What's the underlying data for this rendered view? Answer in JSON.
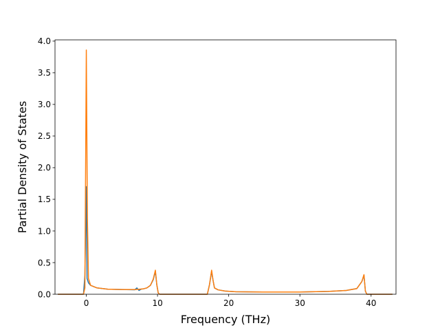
{
  "chart_data": {
    "type": "line",
    "title": "",
    "xlabel": "Frequency (THz)",
    "ylabel": "Partial Density of States",
    "xlim": [
      -4.4,
      43.5
    ],
    "ylim": [
      0.0,
      4.02
    ],
    "xticks": [
      0,
      10,
      20,
      30,
      40
    ],
    "xtick_labels": [
      "0",
      "10",
      "20",
      "30",
      "40"
    ],
    "yticks": [
      0.0,
      0.5,
      1.0,
      1.5,
      2.0,
      2.5,
      3.0,
      3.5,
      4.0
    ],
    "ytick_labels": [
      "0.0",
      "0.5",
      "1.0",
      "1.5",
      "2.0",
      "2.5",
      "3.0",
      "3.5",
      "4.0"
    ],
    "grid": false,
    "legend": "none",
    "series": [
      {
        "color": "#1f77b4",
        "x": [
          -4.0,
          -0.4,
          -0.2,
          0.0,
          0.1,
          0.3,
          0.6,
          1.5,
          3.0,
          5.0,
          6.8,
          7.1,
          7.4,
          7.7,
          8.0,
          8.5,
          9.0,
          9.4,
          9.7,
          9.9,
          10.1,
          10.3,
          11.0,
          14.0,
          17.0,
          17.3,
          17.6,
          17.8,
          18.0,
          18.5,
          19.5,
          21.0,
          25.0,
          30.0,
          34.0,
          36.5,
          38.0,
          38.7,
          39.0,
          39.2,
          39.4,
          39.8,
          43.0
        ],
        "y": [
          0.0,
          0.0,
          0.3,
          1.7,
          0.25,
          0.18,
          0.14,
          0.1,
          0.08,
          0.075,
          0.07,
          0.1,
          0.06,
          0.08,
          0.085,
          0.1,
          0.14,
          0.23,
          0.36,
          0.15,
          0.02,
          0.0,
          0.0,
          0.0,
          0.0,
          0.15,
          0.36,
          0.22,
          0.1,
          0.07,
          0.05,
          0.04,
          0.035,
          0.035,
          0.045,
          0.06,
          0.09,
          0.2,
          0.3,
          0.05,
          0.0,
          0.0,
          0.0
        ]
      },
      {
        "color": "#ff7f0e",
        "x": [
          -4.0,
          -0.4,
          -0.2,
          0.0,
          0.15,
          0.3,
          0.6,
          1.5,
          3.0,
          5.0,
          7.0,
          8.0,
          8.5,
          9.0,
          9.4,
          9.7,
          9.9,
          10.1,
          10.3,
          11.0,
          14.0,
          17.0,
          17.3,
          17.6,
          17.8,
          18.0,
          18.5,
          19.5,
          21.0,
          25.0,
          30.0,
          34.0,
          36.5,
          38.0,
          38.7,
          39.0,
          39.2,
          39.4,
          39.8,
          43.0
        ],
        "y": [
          0.0,
          0.0,
          0.1,
          3.86,
          1.2,
          0.25,
          0.14,
          0.1,
          0.08,
          0.075,
          0.075,
          0.085,
          0.1,
          0.14,
          0.24,
          0.38,
          0.15,
          0.02,
          0.0,
          0.0,
          0.0,
          0.0,
          0.15,
          0.38,
          0.22,
          0.1,
          0.07,
          0.05,
          0.04,
          0.035,
          0.035,
          0.045,
          0.06,
          0.09,
          0.2,
          0.31,
          0.05,
          0.0,
          0.0,
          0.0
        ]
      }
    ]
  }
}
